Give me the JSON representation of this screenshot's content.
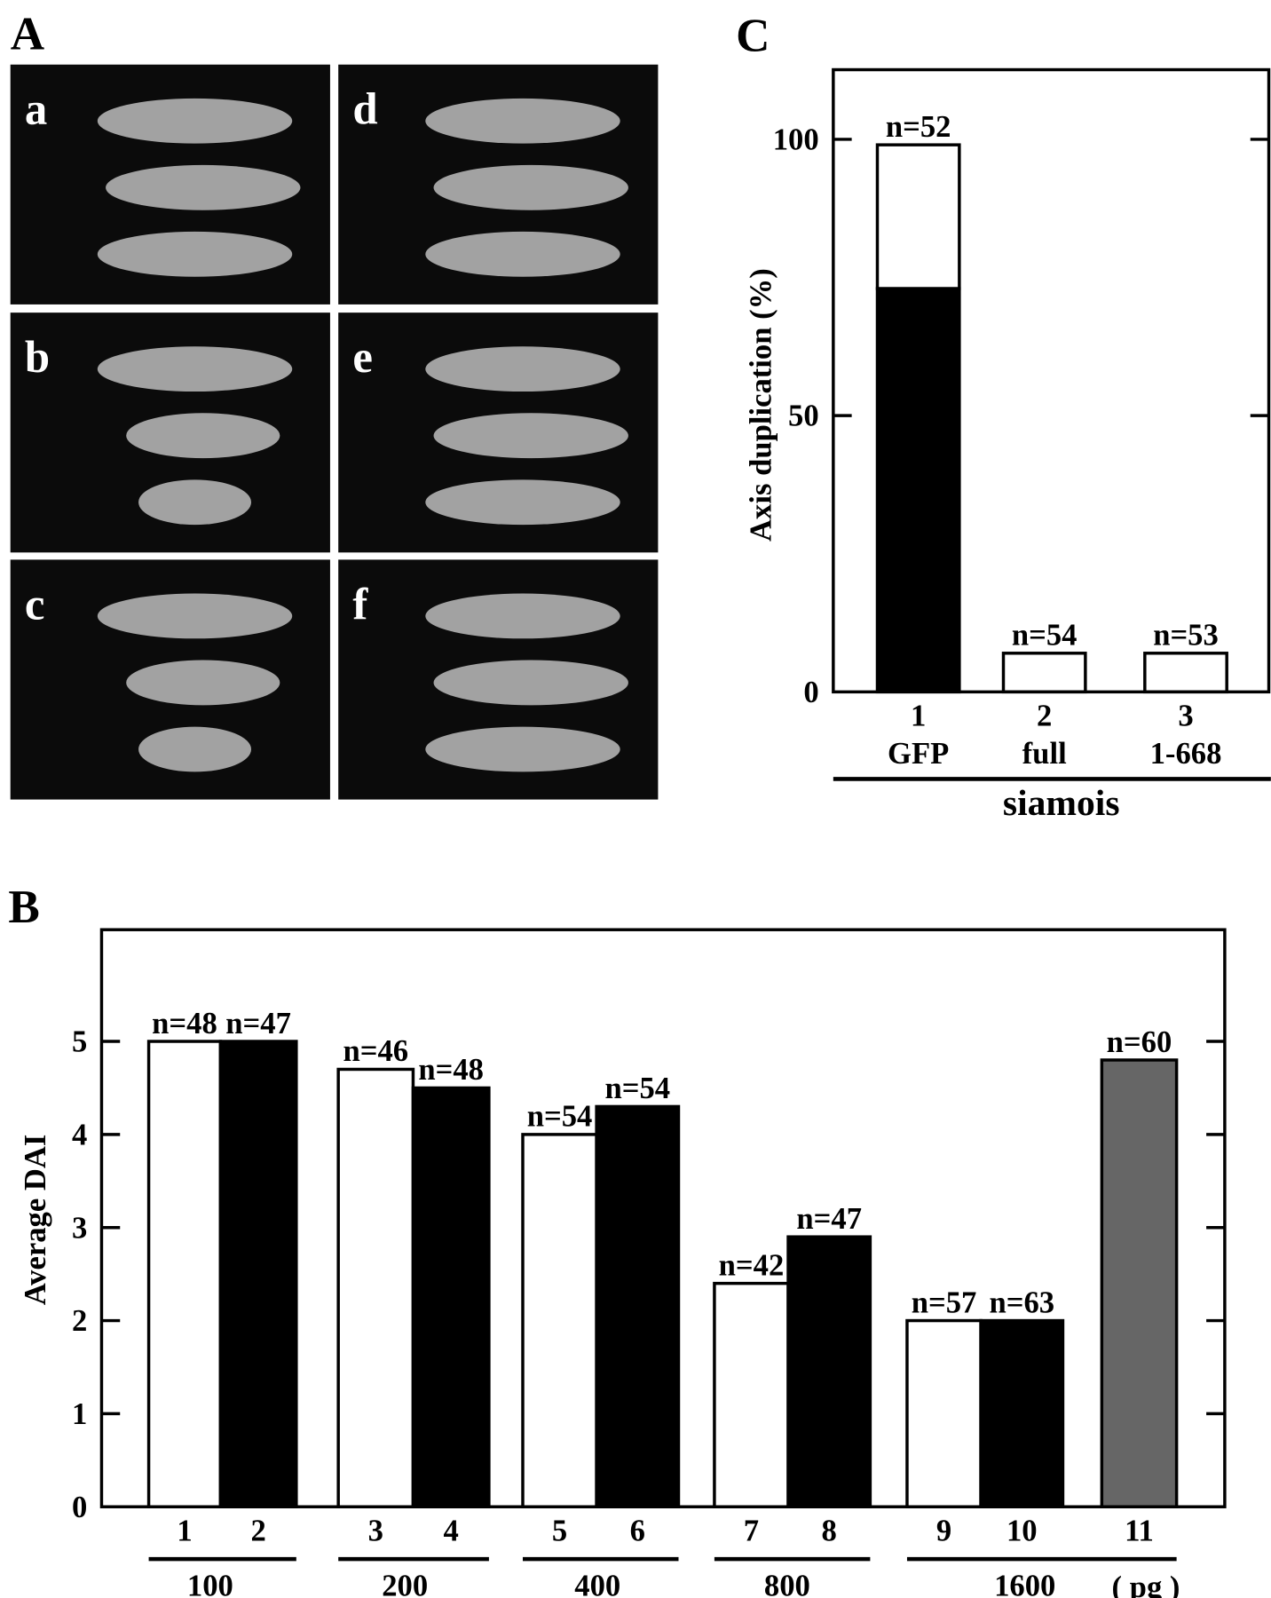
{
  "figure": {
    "panel_labels": [
      "A",
      "B",
      "C"
    ],
    "photo_labels": [
      "a",
      "b",
      "c",
      "d",
      "e",
      "f"
    ]
  },
  "chart_data": [
    {
      "type": "bar",
      "stacked": true,
      "categories": [
        "1",
        "2",
        "3"
      ],
      "category_sublabels": [
        "GFP",
        "full",
        "1-668"
      ],
      "xlabel": "siamois",
      "ylabel": "Axis duplication (%)",
      "series": [
        {
          "color": "#000000",
          "values": [
            73,
            0,
            0
          ]
        },
        {
          "color": "#ffffff",
          "values": [
            26,
            7,
            7
          ]
        }
      ],
      "annotations": [
        "n=52",
        "n=54",
        "n=53"
      ],
      "ylim": [
        0,
        112.6
      ],
      "yticks": [
        0,
        50,
        100
      ]
    },
    {
      "type": "bar",
      "categories": [
        "1",
        "2",
        "3",
        "4",
        "5",
        "6",
        "7",
        "8",
        "9",
        "10",
        "11"
      ],
      "group_labels": [
        "100",
        "200",
        "400",
        "800",
        "1600"
      ],
      "x_unit": "( pg )",
      "ylabel": "Average DAI",
      "values": [
        5.0,
        5.0,
        4.7,
        4.5,
        4.0,
        4.3,
        2.4,
        2.9,
        2.0,
        2.0,
        4.8
      ],
      "colors": [
        "#ffffff",
        "#000000",
        "#ffffff",
        "#000000",
        "#ffffff",
        "#000000",
        "#ffffff",
        "#000000",
        "#ffffff",
        "#000000",
        "#666666"
      ],
      "annotations": [
        "n=48",
        "n=47",
        "n=46",
        "n=48",
        "n=54",
        "n=54",
        "n=42",
        "n=47",
        "n=57",
        "n=63",
        "n=60"
      ],
      "ylim": [
        0,
        6.2
      ],
      "yticks": [
        0,
        1,
        2,
        3,
        4,
        5
      ]
    }
  ]
}
